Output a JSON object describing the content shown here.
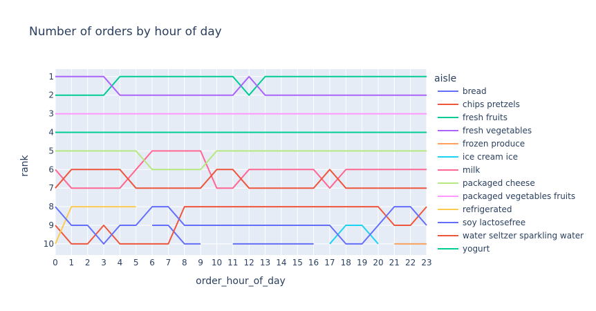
{
  "chart_data": {
    "type": "line",
    "title": "Number of orders by hour of day",
    "xlabel": "order_hour_of_day",
    "ylabel": "rank",
    "xlim": [
      0,
      23
    ],
    "ylim": [
      10.6,
      0.6
    ],
    "y_reversed": true,
    "x_ticks": [
      0,
      1,
      2,
      3,
      4,
      5,
      6,
      7,
      8,
      9,
      10,
      11,
      12,
      13,
      14,
      15,
      16,
      17,
      18,
      19,
      20,
      21,
      22,
      23
    ],
    "y_ticks": [
      1,
      2,
      3,
      4,
      5,
      6,
      7,
      8,
      9,
      10
    ],
    "grid": true,
    "plot_background": "#e5ecf6",
    "legend_title": "aisle",
    "legend_position": "right",
    "x": [
      0,
      1,
      2,
      3,
      4,
      5,
      6,
      7,
      8,
      9,
      10,
      11,
      12,
      13,
      14,
      15,
      16,
      17,
      18,
      19,
      20,
      21,
      22,
      23
    ],
    "series": [
      {
        "name": "bread",
        "color": "#636efa",
        "values": [
          null,
          null,
          null,
          null,
          null,
          null,
          9,
          9,
          10,
          10,
          null,
          10,
          10,
          10,
          10,
          10,
          10,
          null,
          null,
          null,
          null,
          null,
          null,
          null
        ]
      },
      {
        "name": "chips pretzels",
        "color": "#EF553B",
        "values": [
          9,
          10,
          10,
          9,
          10,
          10,
          10,
          10,
          8,
          8,
          8,
          8,
          8,
          8,
          8,
          8,
          8,
          8,
          8,
          8,
          8,
          9,
          9,
          8
        ]
      },
      {
        "name": "fresh fruits",
        "color": "#00cc96",
        "values": [
          2,
          2,
          2,
          2,
          1,
          1,
          1,
          1,
          1,
          1,
          1,
          1,
          2,
          1,
          1,
          1,
          1,
          1,
          1,
          1,
          1,
          1,
          1,
          1
        ]
      },
      {
        "name": "fresh vegetables",
        "color": "#ab63fa",
        "values": [
          1,
          1,
          1,
          1,
          2,
          2,
          2,
          2,
          2,
          2,
          2,
          2,
          1,
          2,
          2,
          2,
          2,
          2,
          2,
          2,
          2,
          2,
          2,
          2
        ]
      },
      {
        "name": "frozen produce",
        "color": "#FFA15A",
        "values": [
          null,
          null,
          null,
          null,
          null,
          null,
          null,
          null,
          null,
          null,
          null,
          null,
          null,
          null,
          null,
          null,
          null,
          null,
          null,
          null,
          null,
          10,
          10,
          10
        ]
      },
      {
        "name": "ice cream ice",
        "color": "#19d3f3",
        "values": [
          null,
          null,
          null,
          null,
          null,
          null,
          null,
          null,
          null,
          null,
          null,
          null,
          null,
          null,
          null,
          null,
          null,
          10,
          9,
          9,
          10,
          null,
          null,
          null
        ]
      },
      {
        "name": "milk",
        "color": "#FF6692",
        "values": [
          6,
          7,
          7,
          7,
          7,
          6,
          5,
          5,
          5,
          5,
          7,
          7,
          6,
          6,
          6,
          6,
          6,
          7,
          6,
          6,
          6,
          6,
          6,
          6
        ]
      },
      {
        "name": "packaged cheese",
        "color": "#B6E880",
        "values": [
          5,
          5,
          5,
          5,
          5,
          5,
          6,
          6,
          6,
          6,
          5,
          5,
          5,
          5,
          5,
          5,
          5,
          5,
          5,
          5,
          5,
          5,
          5,
          5
        ]
      },
      {
        "name": "packaged vegetables fruits",
        "color": "#FF97FF",
        "values": [
          3,
          3,
          3,
          3,
          3,
          3,
          3,
          3,
          3,
          3,
          3,
          3,
          3,
          3,
          3,
          3,
          3,
          3,
          3,
          3,
          3,
          3,
          3,
          3
        ]
      },
      {
        "name": "refrigerated",
        "color": "#FECB52",
        "values": [
          10,
          8,
          8,
          8,
          8,
          8,
          null,
          null,
          null,
          null,
          null,
          null,
          null,
          null,
          null,
          null,
          null,
          null,
          null,
          null,
          null,
          null,
          null,
          null
        ]
      },
      {
        "name": "soy lactosefree",
        "color": "#636efa",
        "values": [
          8,
          9,
          9,
          10,
          9,
          9,
          8,
          8,
          9,
          9,
          9,
          9,
          9,
          9,
          9,
          9,
          9,
          9,
          10,
          10,
          9,
          8,
          8,
          9
        ]
      },
      {
        "name": "water seltzer sparkling water",
        "color": "#EF553B",
        "values": [
          7,
          6,
          6,
          6,
          6,
          7,
          7,
          7,
          7,
          7,
          6,
          6,
          7,
          7,
          7,
          7,
          7,
          6,
          7,
          7,
          7,
          7,
          7,
          7
        ]
      },
      {
        "name": "yogurt",
        "color": "#00cc96",
        "values": [
          4,
          4,
          4,
          4,
          4,
          4,
          4,
          4,
          4,
          4,
          4,
          4,
          4,
          4,
          4,
          4,
          4,
          4,
          4,
          4,
          4,
          4,
          4,
          4
        ]
      }
    ]
  }
}
